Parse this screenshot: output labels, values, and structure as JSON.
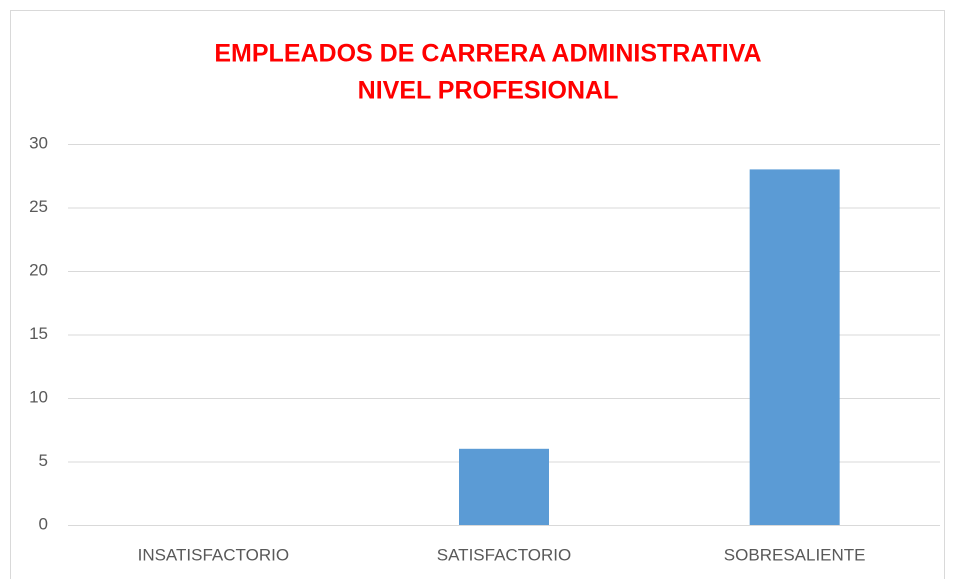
{
  "chart_data": {
    "type": "bar",
    "title": [
      "EMPLEADOS DE CARRERA ADMINISTRATIVA",
      "NIVEL PROFESIONAL"
    ],
    "categories": [
      "INSATISFACTORIO",
      "SATISFACTORIO",
      "SOBRESALIENTE"
    ],
    "values": [
      0,
      6,
      28
    ],
    "color": "#5b9bd5",
    "ylim": [
      0,
      30
    ],
    "yticks": [
      0,
      5,
      10,
      15,
      20,
      25,
      30
    ],
    "grid": true
  }
}
